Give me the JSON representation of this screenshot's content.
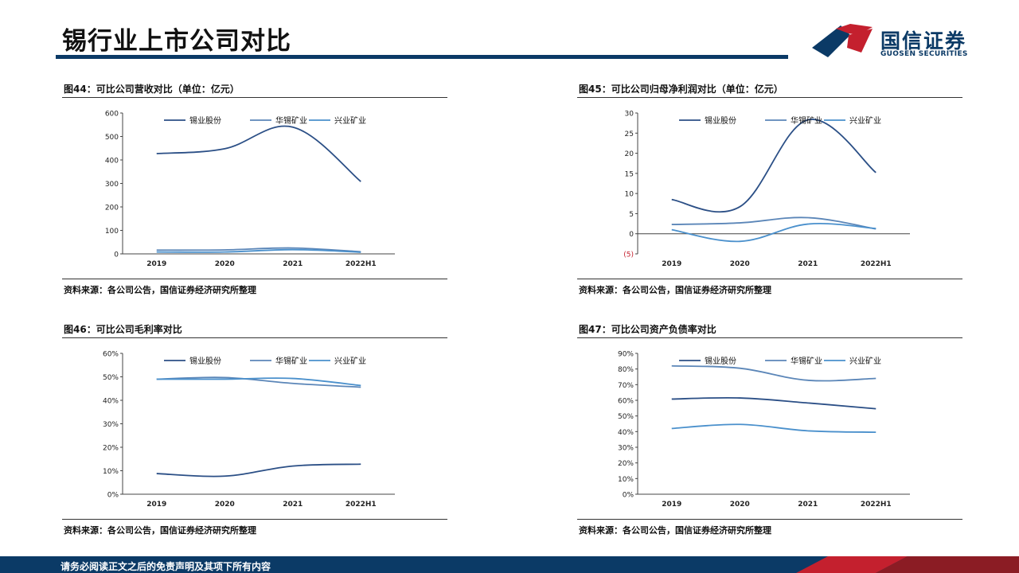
{
  "header": {
    "title": "锡行业上市公司对比",
    "logo_name": "国信证券",
    "logo_sub": "GUOSEN SECURITIES"
  },
  "footer": {
    "disclaimer": "请务必阅读正文之后的免责声明及其项下所有内容"
  },
  "colors": {
    "navy": "#0b3a66",
    "red": "#c4202e",
    "series": [
      "#2b4f86",
      "#5b86b8",
      "#4a90cc"
    ]
  },
  "panels": [
    {
      "title": "图44：可比公司营收对比（单位：亿元）",
      "source": "资料来源：各公司公告，国信证券经济研究所整理"
    },
    {
      "title": "图45：可比公司归母净利润对比（单位：亿元）",
      "source": "资料来源：各公司公告，国信证券经济研究所整理"
    },
    {
      "title": "图46：可比公司毛利率对比",
      "source": "资料来源：各公司公告，国信证券经济研究所整理"
    },
    {
      "title": "图47：可比公司资产负债率对比",
      "source": "资料来源：各公司公告，国信证券经济研究所整理"
    }
  ],
  "chart_data": [
    {
      "type": "line",
      "title": "图44：可比公司营收对比（单位：亿元）",
      "categories": [
        "2019",
        "2020",
        "2021",
        "2022H1"
      ],
      "ylim": [
        0,
        600
      ],
      "yticks": [
        "0",
        "100",
        "200",
        "300",
        "400",
        "500",
        "600"
      ],
      "legend": "top",
      "series": [
        {
          "name": "锡业股份",
          "values": [
            427,
            448,
            540,
            308
          ]
        },
        {
          "name": "华锡矿业",
          "values": [
            16,
            17,
            25,
            9
          ]
        },
        {
          "name": "兴业矿业",
          "values": [
            8,
            8,
            18,
            7
          ]
        }
      ]
    },
    {
      "type": "line",
      "title": "图45：可比公司归母净利润对比（单位：亿元）",
      "categories": [
        "2019",
        "2020",
        "2021",
        "2022H1"
      ],
      "ylim": [
        -5,
        30
      ],
      "yticks": [
        "(5)",
        "0",
        "5",
        "10",
        "15",
        "20",
        "25",
        "30"
      ],
      "legend": "top",
      "series": [
        {
          "name": "锡业股份",
          "values": [
            8.5,
            6.7,
            28.3,
            15.2
          ]
        },
        {
          "name": "华锡矿业",
          "values": [
            2.3,
            2.7,
            4.0,
            1.2
          ]
        },
        {
          "name": "兴业矿业",
          "values": [
            1.0,
            -1.9,
            2.4,
            1.3
          ]
        }
      ]
    },
    {
      "type": "line",
      "title": "图46：可比公司毛利率对比",
      "categories": [
        "2019",
        "2020",
        "2021",
        "2022H1"
      ],
      "ylim": [
        0,
        60
      ],
      "yticks": [
        "0%",
        "10%",
        "20%",
        "30%",
        "40%",
        "50%",
        "60%"
      ],
      "legend": "top",
      "series": [
        {
          "name": "锡业股份",
          "values": [
            8.8,
            7.7,
            12.0,
            12.8
          ]
        },
        {
          "name": "华锡矿业",
          "values": [
            49.0,
            49.7,
            47.2,
            45.6
          ]
        },
        {
          "name": "兴业矿业",
          "values": [
            49.0,
            49.0,
            49.3,
            46.3
          ]
        }
      ]
    },
    {
      "type": "line",
      "title": "图47：可比公司资产负债率对比",
      "categories": [
        "2019",
        "2020",
        "2021",
        "2022H1"
      ],
      "ylim": [
        0,
        90
      ],
      "yticks": [
        "0%",
        "10%",
        "20%",
        "30%",
        "40%",
        "50%",
        "60%",
        "70%",
        "80%",
        "90%"
      ],
      "legend": "top",
      "series": [
        {
          "name": "锡业股份",
          "values": [
            60.8,
            61.5,
            58.3,
            54.6
          ]
        },
        {
          "name": "华锡矿业",
          "values": [
            82.0,
            80.5,
            72.8,
            74.0
          ]
        },
        {
          "name": "兴业矿业",
          "values": [
            42.0,
            44.6,
            40.5,
            39.6
          ]
        }
      ]
    }
  ]
}
